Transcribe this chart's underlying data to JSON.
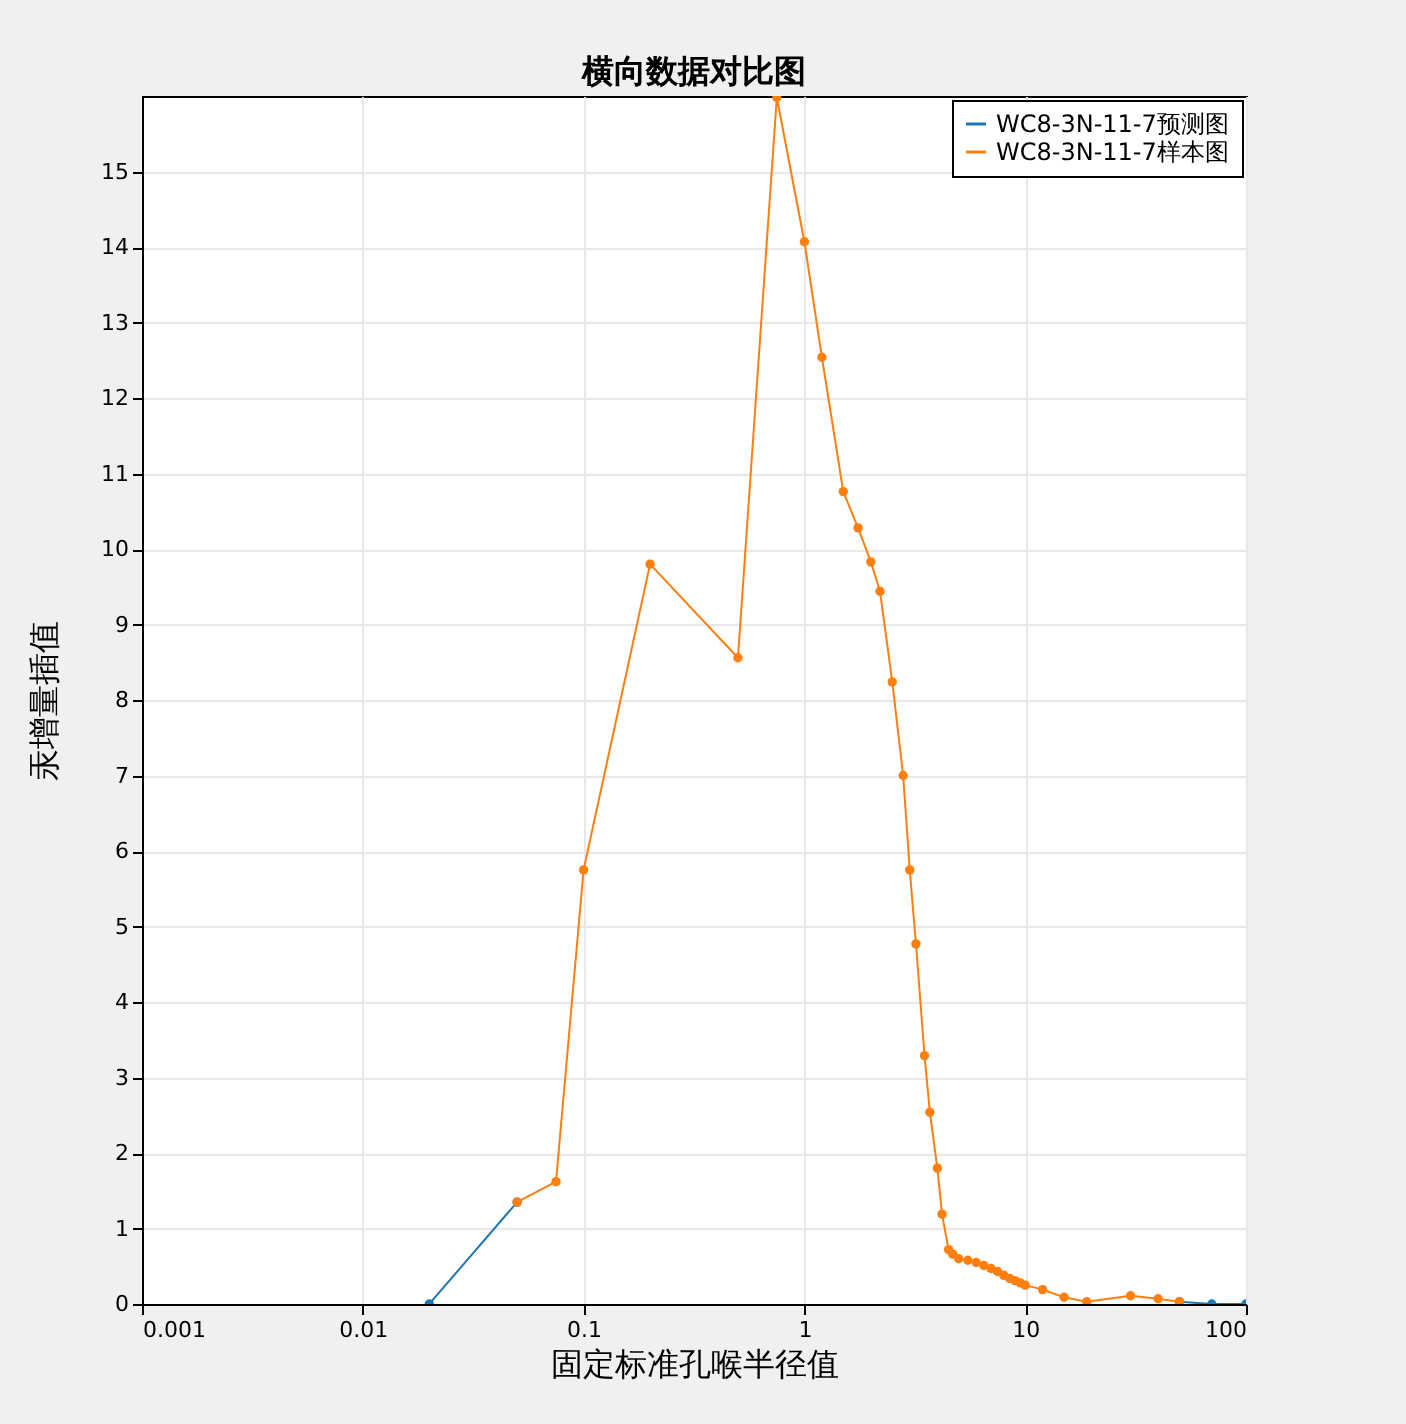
{
  "chart_data": {
    "type": "line",
    "title": "横向数据对比图",
    "xlabel": "固定标准孔喉半径值",
    "ylabel": "汞增量插值",
    "log": "x",
    "xlim": [
      0.001,
      100
    ],
    "xticks": [
      0.001,
      0.01,
      0.1,
      1,
      10,
      100
    ],
    "ylim": [
      0,
      16
    ],
    "yticks": [
      0,
      1,
      2,
      3,
      4,
      5,
      6,
      7,
      8,
      9,
      10,
      11,
      12,
      13,
      14,
      15
    ],
    "grid": true,
    "legend": "top right",
    "marker": "circle",
    "line_style": "solid",
    "series": [
      {
        "name": "WC8-3N-11-7预测图",
        "color": "#1f77b4",
        "x": [
          0.02,
          0.05,
          0.075,
          0.1,
          0.2,
          0.5,
          0.75,
          1.0,
          1.2,
          1.5,
          1.75,
          2.0,
          2.2,
          2.5,
          2.8,
          3.0,
          3.2,
          3.5,
          3.7,
          4.0,
          4.2,
          4.5,
          4.7,
          5,
          5.5,
          6,
          6.5,
          7,
          7.5,
          8,
          8.5,
          9,
          9.5,
          10,
          12,
          15,
          19,
          30,
          40,
          50,
          70,
          100
        ],
        "values": [
          0,
          1.35,
          null,
          null,
          null,
          null,
          null,
          null,
          null,
          null,
          null,
          null,
          null,
          null,
          null,
          null,
          null,
          null,
          null,
          null,
          null,
          null,
          null,
          null,
          null,
          null,
          null,
          null,
          null,
          null,
          null,
          null,
          null,
          null,
          null,
          null,
          null,
          null,
          null,
          0.03,
          0,
          0
        ]
      },
      {
        "name": "WC8-3N-11-7样本图",
        "color": "#ff7f0e",
        "x": [
          0.05,
          0.075,
          0.1,
          0.2,
          0.5,
          0.75,
          1.0,
          1.2,
          1.5,
          1.75,
          2.0,
          2.2,
          2.5,
          2.8,
          3.0,
          3.2,
          3.5,
          3.7,
          4.0,
          4.2,
          4.5,
          4.7,
          5,
          5.5,
          6,
          6.5,
          7,
          7.5,
          8,
          8.5,
          9,
          9.5,
          10,
          12,
          15,
          19,
          30,
          40,
          50
        ],
        "values": [
          1.35,
          1.62,
          5.75,
          9.8,
          8.56,
          15.98,
          14.07,
          12.54,
          10.76,
          10.28,
          9.83,
          9.44,
          8.24,
          7.0,
          5.75,
          4.77,
          3.29,
          2.54,
          1.8,
          1.19,
          0.72,
          0.66,
          0.6,
          0.58,
          0.55,
          0.51,
          0.47,
          0.43,
          0.38,
          0.34,
          0.31,
          0.28,
          0.25,
          0.19,
          0.09,
          0.03,
          0.11,
          0.07,
          0.03
        ]
      }
    ]
  }
}
